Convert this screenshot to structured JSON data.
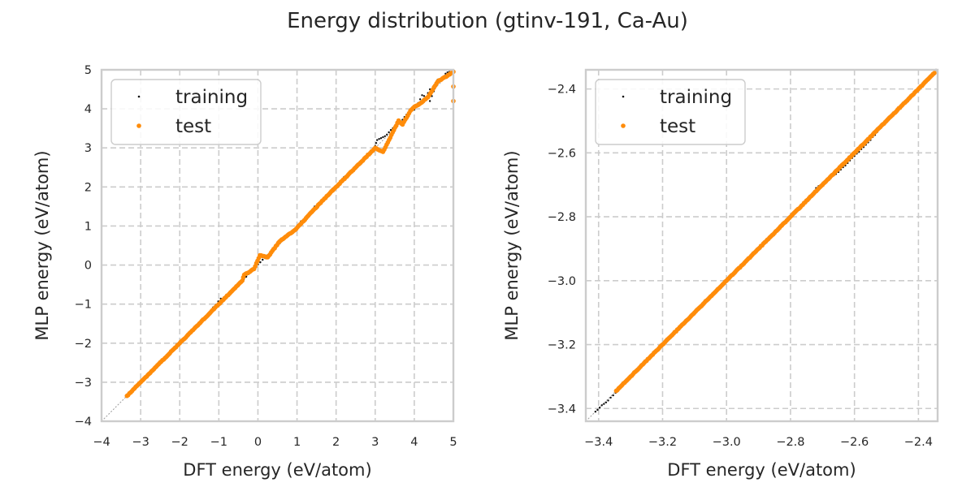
{
  "title": "Energy distribution (gtinv-191, Ca-Au)",
  "colors": {
    "training": "#111111",
    "test": "#ff8c0a",
    "grid": "#cccccc",
    "frame": "#cccccc",
    "diagonal": "#9a9a9a"
  },
  "chart_data": [
    {
      "type": "scatter",
      "xlabel": "DFT energy (eV/atom)",
      "ylabel": "MLP energy (eV/atom)",
      "xlim": [
        -4,
        5
      ],
      "ylim": [
        -4,
        5
      ],
      "xticks": [
        -4,
        -3,
        -2,
        -1,
        0,
        1,
        2,
        3,
        4,
        5
      ],
      "yticks": [
        -4,
        -3,
        -2,
        -1,
        0,
        1,
        2,
        3,
        4,
        5
      ],
      "xtick_labels": [
        "−4",
        "−3",
        "−2",
        "−1",
        "0",
        "1",
        "2",
        "3",
        "4",
        "5"
      ],
      "ytick_labels": [
        "−4",
        "−3",
        "−2",
        "−1",
        "0",
        "1",
        "2",
        "3",
        "4",
        "5"
      ],
      "grid": true,
      "legend_position": "top-left",
      "diagonal": true,
      "series": [
        {
          "name": "training",
          "marker": "dot",
          "points": [
            [
              -3.35,
              -3.36
            ],
            [
              -3.1,
              -3.1
            ],
            [
              -2.6,
              -2.6
            ],
            [
              -2.0,
              -2.0
            ],
            [
              -1.4,
              -1.4
            ],
            [
              -0.95,
              -0.86
            ],
            [
              -0.8,
              -0.8
            ],
            [
              -0.6,
              -0.57
            ],
            [
              -0.3,
              -0.3
            ],
            [
              0.0,
              0.02
            ],
            [
              0.3,
              0.3
            ],
            [
              0.5,
              0.5
            ],
            [
              0.8,
              0.82
            ],
            [
              0.95,
              0.9
            ],
            [
              1.1,
              1.12
            ],
            [
              1.3,
              1.28
            ],
            [
              1.45,
              1.5
            ],
            [
              1.6,
              1.62
            ],
            [
              1.75,
              1.7
            ],
            [
              1.9,
              1.95
            ],
            [
              2.05,
              2.03
            ],
            [
              2.2,
              2.25
            ],
            [
              2.35,
              2.35
            ],
            [
              2.5,
              2.52
            ],
            [
              2.65,
              2.6
            ],
            [
              2.8,
              2.85
            ],
            [
              2.9,
              2.92
            ],
            [
              3.0,
              3.05
            ],
            [
              3.05,
              3.2
            ],
            [
              3.15,
              3.25
            ],
            [
              3.25,
              3.3
            ],
            [
              3.35,
              3.4
            ],
            [
              3.45,
              3.5
            ],
            [
              3.55,
              3.6
            ],
            [
              3.7,
              3.72
            ],
            [
              3.8,
              3.85
            ],
            [
              3.9,
              3.95
            ],
            [
              4.0,
              3.98
            ],
            [
              4.1,
              4.15
            ],
            [
              4.2,
              4.35
            ],
            [
              4.3,
              4.3
            ],
            [
              4.4,
              4.5
            ],
            [
              4.5,
              4.45
            ],
            [
              4.55,
              4.6
            ],
            [
              4.65,
              4.7
            ],
            [
              4.75,
              4.8
            ],
            [
              4.8,
              4.9
            ],
            [
              4.9,
              4.95
            ],
            [
              4.4,
              4.2
            ],
            [
              4.6,
              4.75
            ]
          ]
        },
        {
          "name": "test",
          "marker": "circle",
          "points": [
            [
              -3.35,
              -3.35
            ],
            [
              -3.0,
              -3.0
            ],
            [
              -2.6,
              -2.6
            ],
            [
              -2.0,
              -2.0
            ],
            [
              -1.5,
              -1.5
            ],
            [
              -1.0,
              -1.0
            ],
            [
              -0.7,
              -0.7
            ],
            [
              -0.4,
              -0.4
            ],
            [
              -0.35,
              -0.25
            ],
            [
              -0.1,
              -0.1
            ],
            [
              0.05,
              0.25
            ],
            [
              0.25,
              0.2
            ],
            [
              0.55,
              0.6
            ],
            [
              0.7,
              0.72
            ],
            [
              0.95,
              0.9
            ],
            [
              1.7,
              1.7
            ],
            [
              2.0,
              2.0
            ],
            [
              2.4,
              2.4
            ],
            [
              2.5,
              2.5
            ],
            [
              3.0,
              3.0
            ],
            [
              3.2,
              2.9
            ],
            [
              3.6,
              3.7
            ],
            [
              3.7,
              3.6
            ],
            [
              3.9,
              3.95
            ],
            [
              4.0,
              4.05
            ],
            [
              4.1,
              4.1
            ],
            [
              4.35,
              4.3
            ],
            [
              4.6,
              4.7
            ],
            [
              4.85,
              4.85
            ],
            [
              5.0,
              4.95
            ],
            [
              5.0,
              4.2
            ]
          ]
        }
      ]
    },
    {
      "type": "scatter",
      "xlabel": "DFT energy (eV/atom)",
      "ylabel": "MLP energy (eV/atom)",
      "xlim": [
        -3.44,
        -2.34
      ],
      "ylim": [
        -3.44,
        -2.34
      ],
      "xticks": [
        -3.4,
        -3.2,
        -3.0,
        -2.8,
        -2.6,
        -2.4
      ],
      "yticks": [
        -3.4,
        -3.2,
        -3.0,
        -2.8,
        -2.6,
        -2.4
      ],
      "xtick_labels": [
        "−3.4",
        "−3.2",
        "−3.0",
        "−2.8",
        "−2.6",
        "−2.4"
      ],
      "ytick_labels": [
        "−3.4",
        "−3.2",
        "−3.0",
        "−2.8",
        "−2.6",
        "−2.4"
      ],
      "grid": true,
      "legend_position": "top-left",
      "diagonal": true,
      "series": [
        {
          "name": "training",
          "marker": "dot",
          "points": [
            [
              -3.41,
              -3.41
            ],
            [
              -3.39,
              -3.39
            ],
            [
              -3.37,
              -3.375
            ],
            [
              -3.3,
              -3.3
            ],
            [
              -3.2,
              -3.2
            ],
            [
              -3.1,
              -3.1
            ],
            [
              -3.0,
              -3.0
            ],
            [
              -2.9,
              -2.9
            ],
            [
              -2.72,
              -2.71
            ],
            [
              -2.65,
              -2.66
            ],
            [
              -2.6,
              -2.61
            ],
            [
              -2.55,
              -2.56
            ],
            [
              -2.5,
              -2.5
            ],
            [
              -2.45,
              -2.445
            ],
            [
              -2.4,
              -2.4
            ],
            [
              -2.37,
              -2.37
            ],
            [
              -2.35,
              -2.355
            ],
            [
              -2.345,
              -2.34
            ]
          ]
        },
        {
          "name": "test",
          "marker": "circle",
          "points": [
            [
              -3.345,
              -3.345
            ],
            [
              -3.3,
              -3.3
            ],
            [
              -3.2,
              -3.2
            ],
            [
              -3.1,
              -3.1
            ],
            [
              -3.0,
              -3.0
            ],
            [
              -2.9,
              -2.9
            ],
            [
              -2.8,
              -2.8
            ],
            [
              -2.7,
              -2.7
            ],
            [
              -2.6,
              -2.6
            ],
            [
              -2.5,
              -2.5
            ],
            [
              -2.45,
              -2.45
            ],
            [
              -2.4,
              -2.4
            ],
            [
              -2.35,
              -2.35
            ]
          ]
        }
      ]
    }
  ]
}
